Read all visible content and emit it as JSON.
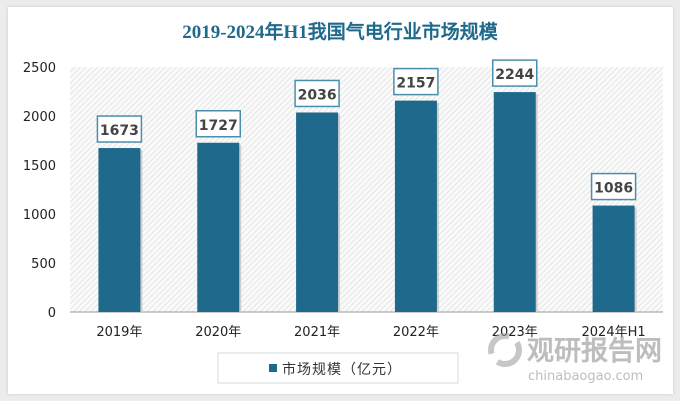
{
  "chart_data": {
    "type": "bar",
    "title": "2019-2024年H1我国气电行业市场规模",
    "categories": [
      "2019年",
      "2020年",
      "2021年",
      "2022年",
      "2023年",
      "2024年H1"
    ],
    "series": [
      {
        "name": "市场规模（亿元）",
        "values": [
          1673,
          1727,
          2036,
          2157,
          2244,
          1086
        ]
      }
    ],
    "ylim": [
      0,
      2500
    ],
    "yticks": [
      0,
      500,
      1000,
      1500,
      2000,
      2500
    ],
    "xlabel": "",
    "ylabel": "",
    "grid": false,
    "legend": "bottom",
    "data_labels": true,
    "colors": {
      "bar": "#1f6a8c",
      "title": "#1f6a8c",
      "label_border": "#4a8ead"
    }
  },
  "watermark": {
    "cn": "观研报告网",
    "en": "chinabaogao.com"
  }
}
